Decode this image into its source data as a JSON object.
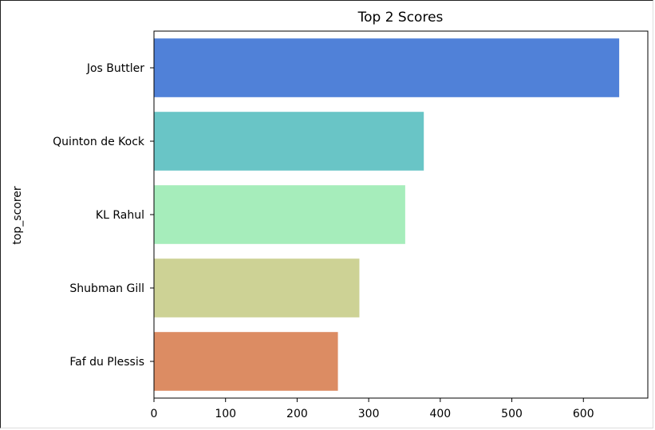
{
  "chart_data": {
    "type": "bar",
    "orientation": "horizontal",
    "title": "Top 2 Scores",
    "xlabel": "",
    "ylabel": "top_scorer",
    "categories": [
      "Jos Buttler",
      "Quinton de Kock",
      "KL Rahul",
      "Shubman Gill",
      "Faf du Plessis"
    ],
    "values": [
      650,
      377,
      351,
      287,
      257
    ],
    "colors": [
      "#5081d8",
      "#69c5c6",
      "#a6edbb",
      "#cdd295",
      "#dc8c63"
    ],
    "xlim": [
      0,
      690
    ],
    "xticks": [
      "0",
      "100",
      "200",
      "300",
      "400",
      "500",
      "600"
    ],
    "grid": false,
    "legend": "none"
  }
}
